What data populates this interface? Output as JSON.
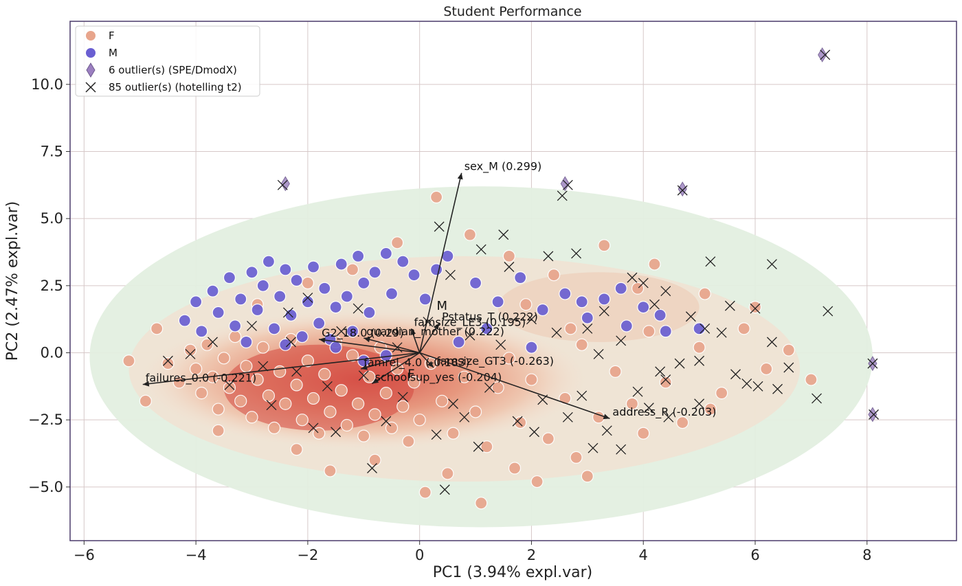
{
  "chart_data": {
    "type": "scatter",
    "title": "Student Performance",
    "xlabel": "PC1 (3.94% expl.var)",
    "ylabel": "PC2 (2.47% expl.var)",
    "xlim": [
      -6.25,
      9.6
    ],
    "ylim": [
      -7.0,
      12.35
    ],
    "xticks": [
      -6,
      -4,
      -2,
      0,
      2,
      4,
      6,
      8
    ],
    "yticks": [
      -5.0,
      -2.5,
      0.0,
      2.5,
      5.0,
      7.5,
      10.0
    ],
    "grid": true,
    "legend": {
      "position": "top-left",
      "entries": [
        {
          "label": "F",
          "marker": "circle",
          "color": "#e8a58c"
        },
        {
          "label": "M",
          "marker": "circle",
          "color": "#6a5fd2"
        },
        {
          "label": "6 outlier(s) (SPE/DmodX)",
          "marker": "diamond",
          "color": "#9b7fc0"
        },
        {
          "label": "85 outlier(s) (hotelling t2)",
          "marker": "x",
          "color": "#222222"
        }
      ]
    },
    "series": [
      {
        "name": "F",
        "color": "#e8a58c",
        "points": [
          [
            -4.7,
            0.9
          ],
          [
            -4.5,
            -0.4
          ],
          [
            -4.3,
            -1.1
          ],
          [
            -4.1,
            0.1
          ],
          [
            -4.0,
            -0.6
          ],
          [
            -3.9,
            -1.5
          ],
          [
            -3.8,
            0.3
          ],
          [
            -3.7,
            -0.9
          ],
          [
            -3.6,
            -2.1
          ],
          [
            -3.5,
            -0.2
          ],
          [
            -3.4,
            -1.3
          ],
          [
            -3.3,
            0.6
          ],
          [
            -3.2,
            -1.8
          ],
          [
            -3.1,
            -0.5
          ],
          [
            -3.0,
            -2.4
          ],
          [
            -2.9,
            -1.0
          ],
          [
            -2.8,
            0.2
          ],
          [
            -2.7,
            -1.6
          ],
          [
            -2.6,
            -2.8
          ],
          [
            -2.5,
            -0.7
          ],
          [
            -2.4,
            -1.9
          ],
          [
            -2.3,
            0.5
          ],
          [
            -2.2,
            -1.2
          ],
          [
            -2.1,
            -2.5
          ],
          [
            -2.0,
            -0.3
          ],
          [
            -1.9,
            -1.7
          ],
          [
            -1.8,
            -3.0
          ],
          [
            -1.7,
            -0.8
          ],
          [
            -1.6,
            -2.2
          ],
          [
            -1.5,
            0.4
          ],
          [
            -1.4,
            -1.4
          ],
          [
            -1.3,
            -2.7
          ],
          [
            -1.2,
            -0.1
          ],
          [
            -1.1,
            -1.9
          ],
          [
            -1.0,
            -3.1
          ],
          [
            -0.9,
            -0.9
          ],
          [
            -0.8,
            -2.3
          ],
          [
            -0.7,
            0.2
          ],
          [
            -0.6,
            -1.5
          ],
          [
            -0.5,
            -2.8
          ],
          [
            -0.4,
            -0.6
          ],
          [
            -0.3,
            -2.0
          ],
          [
            -0.2,
            -3.3
          ],
          [
            -0.1,
            -1.1
          ],
          [
            0.0,
            -2.5
          ],
          [
            0.2,
            -0.4
          ],
          [
            0.4,
            -1.8
          ],
          [
            0.6,
            -3.0
          ],
          [
            0.8,
            -0.9
          ],
          [
            1.0,
            -2.2
          ],
          [
            1.2,
            -3.5
          ],
          [
            1.4,
            -1.3
          ],
          [
            1.6,
            -0.2
          ],
          [
            1.8,
            -2.6
          ],
          [
            2.0,
            -1.0
          ],
          [
            2.3,
            -3.2
          ],
          [
            2.6,
            -1.7
          ],
          [
            2.9,
            0.3
          ],
          [
            3.2,
            -2.4
          ],
          [
            3.5,
            -0.7
          ],
          [
            3.8,
            -1.9
          ],
          [
            4.1,
            0.8
          ],
          [
            4.4,
            -1.1
          ],
          [
            4.7,
            -2.6
          ],
          [
            5.0,
            0.2
          ],
          [
            5.4,
            -1.5
          ],
          [
            5.8,
            0.9
          ],
          [
            6.2,
            -0.6
          ],
          [
            -2.9,
            1.8
          ],
          [
            -2.0,
            2.6
          ],
          [
            -1.2,
            3.1
          ],
          [
            -0.4,
            4.1
          ],
          [
            0.3,
            5.8
          ],
          [
            0.9,
            4.4
          ],
          [
            1.6,
            3.6
          ],
          [
            2.4,
            2.9
          ],
          [
            3.3,
            4.0
          ],
          [
            4.2,
            3.3
          ],
          [
            5.1,
            2.2
          ],
          [
            6.0,
            1.7
          ],
          [
            -3.6,
            -2.9
          ],
          [
            -2.2,
            -3.6
          ],
          [
            -0.8,
            -4.0
          ],
          [
            0.5,
            -4.5
          ],
          [
            1.7,
            -4.3
          ],
          [
            2.8,
            -3.9
          ],
          [
            4.0,
            -3.0
          ],
          [
            5.2,
            -2.1
          ],
          [
            -1.6,
            -4.4
          ],
          [
            0.1,
            -5.2
          ],
          [
            1.1,
            -5.6
          ],
          [
            2.1,
            -4.8
          ],
          [
            3.0,
            -4.6
          ],
          [
            -5.2,
            -0.3
          ],
          [
            -4.9,
            -1.8
          ],
          [
            6.6,
            0.1
          ],
          [
            7.0,
            -1.0
          ],
          [
            3.9,
            2.4
          ],
          [
            2.7,
            0.9
          ],
          [
            1.9,
            1.8
          ]
        ]
      },
      {
        "name": "M",
        "color": "#6a5fd2",
        "points": [
          [
            -4.2,
            1.2
          ],
          [
            -4.0,
            1.9
          ],
          [
            -3.9,
            0.8
          ],
          [
            -3.7,
            2.3
          ],
          [
            -3.6,
            1.5
          ],
          [
            -3.4,
            2.8
          ],
          [
            -3.3,
            1.0
          ],
          [
            -3.2,
            2.0
          ],
          [
            -3.0,
            3.0
          ],
          [
            -2.9,
            1.6
          ],
          [
            -2.8,
            2.5
          ],
          [
            -2.7,
            3.4
          ],
          [
            -2.6,
            0.9
          ],
          [
            -2.5,
            2.1
          ],
          [
            -2.4,
            3.1
          ],
          [
            -2.3,
            1.4
          ],
          [
            -2.2,
            2.7
          ],
          [
            -2.1,
            0.6
          ],
          [
            -2.0,
            1.9
          ],
          [
            -1.9,
            3.2
          ],
          [
            -1.8,
            1.1
          ],
          [
            -1.7,
            2.4
          ],
          [
            -1.6,
            0.5
          ],
          [
            -1.5,
            1.7
          ],
          [
            -1.4,
            3.3
          ],
          [
            -1.3,
            2.1
          ],
          [
            -1.2,
            0.8
          ],
          [
            -1.1,
            3.6
          ],
          [
            -1.0,
            2.6
          ],
          [
            -0.9,
            1.5
          ],
          [
            -0.8,
            3.0
          ],
          [
            -0.6,
            3.7
          ],
          [
            -0.5,
            2.2
          ],
          [
            -0.3,
            3.4
          ],
          [
            -0.1,
            2.9
          ],
          [
            0.1,
            2.0
          ],
          [
            0.3,
            3.1
          ],
          [
            0.5,
            3.6
          ],
          [
            1.0,
            2.6
          ],
          [
            1.4,
            1.9
          ],
          [
            1.8,
            2.8
          ],
          [
            2.2,
            1.6
          ],
          [
            2.6,
            2.2
          ],
          [
            3.0,
            1.3
          ],
          [
            3.3,
            2.0
          ],
          [
            3.7,
            1.0
          ],
          [
            4.0,
            1.7
          ],
          [
            4.4,
            0.8
          ],
          [
            -1.5,
            0.2
          ],
          [
            -1.0,
            -0.3
          ],
          [
            -0.6,
            -0.1
          ],
          [
            0.7,
            0.4
          ],
          [
            1.2,
            0.9
          ],
          [
            2.0,
            0.2
          ],
          [
            2.9,
            1.9
          ],
          [
            3.6,
            2.4
          ],
          [
            4.3,
            1.4
          ],
          [
            5.0,
            0.9
          ],
          [
            -2.4,
            0.3
          ],
          [
            -3.1,
            0.4
          ]
        ]
      }
    ],
    "outliers_spe": {
      "label": "6 outlier(s) (SPE/DmodX)",
      "points": [
        [
          -2.4,
          6.3
        ],
        [
          2.6,
          6.3
        ],
        [
          4.7,
          6.1
        ],
        [
          7.2,
          11.1
        ],
        [
          8.1,
          -0.4
        ],
        [
          8.1,
          -2.3
        ]
      ]
    },
    "outliers_hotelling": {
      "label": "85 outlier(s) (hotelling t2)",
      "points": [
        [
          -2.45,
          6.25
        ],
        [
          2.55,
          5.85
        ],
        [
          2.65,
          6.25
        ],
        [
          4.7,
          6.05
        ],
        [
          7.25,
          11.1
        ],
        [
          8.1,
          -0.4
        ],
        [
          8.12,
          -2.3
        ],
        [
          0.35,
          4.7
        ],
        [
          1.1,
          3.85
        ],
        [
          1.5,
          4.4
        ],
        [
          2.3,
          3.6
        ],
        [
          2.8,
          3.7
        ],
        [
          1.6,
          3.2
        ],
        [
          0.55,
          2.9
        ],
        [
          5.2,
          3.4
        ],
        [
          6.3,
          3.3
        ],
        [
          4.0,
          2.6
        ],
        [
          4.4,
          2.3
        ],
        [
          5.1,
          0.9
        ],
        [
          5.4,
          0.75
        ],
        [
          6.0,
          1.65
        ],
        [
          7.3,
          1.55
        ],
        [
          6.3,
          0.4
        ],
        [
          4.3,
          -0.7
        ],
        [
          4.4,
          -1.0
        ],
        [
          5.65,
          -0.8
        ],
        [
          5.85,
          -1.15
        ],
        [
          6.05,
          -1.25
        ],
        [
          6.4,
          -1.35
        ],
        [
          5.0,
          -1.9
        ],
        [
          3.2,
          -0.05
        ],
        [
          3.35,
          -2.9
        ],
        [
          3.1,
          -3.55
        ],
        [
          4.45,
          -2.4
        ],
        [
          2.65,
          -2.4
        ],
        [
          1.75,
          -2.55
        ],
        [
          0.8,
          -2.4
        ],
        [
          -0.85,
          -4.3
        ],
        [
          0.45,
          -5.1
        ],
        [
          -1.9,
          -2.8
        ],
        [
          -1.5,
          -2.95
        ],
        [
          -2.2,
          -0.7
        ],
        [
          -2.8,
          -0.5
        ],
        [
          -3.4,
          -1.2
        ],
        [
          -4.5,
          -0.3
        ],
        [
          -2.35,
          1.5
        ],
        [
          -2.3,
          0.4
        ],
        [
          -1.4,
          0.8
        ],
        [
          3.0,
          0.9
        ],
        [
          3.6,
          0.45
        ],
        [
          4.65,
          -0.4
        ],
        [
          5.0,
          -0.3
        ],
        [
          4.2,
          1.8
        ],
        [
          3.8,
          2.8
        ],
        [
          2.0,
          1.25
        ],
        [
          0.9,
          0.65
        ],
        [
          -0.4,
          0.2
        ],
        [
          -1.0,
          -0.85
        ],
        [
          0.6,
          -1.9
        ],
        [
          1.25,
          -1.3
        ],
        [
          2.2,
          -1.75
        ],
        [
          2.9,
          -1.6
        ],
        [
          3.9,
          -1.45
        ],
        [
          -0.3,
          -1.65
        ],
        [
          -3.0,
          1.0
        ],
        [
          -2.0,
          2.05
        ],
        [
          -1.1,
          1.65
        ],
        [
          0.15,
          1.15
        ],
        [
          1.45,
          0.3
        ],
        [
          2.45,
          0.75
        ],
        [
          3.3,
          1.55
        ],
        [
          4.85,
          1.35
        ],
        [
          5.55,
          1.75
        ],
        [
          6.6,
          -0.55
        ],
        [
          7.1,
          -1.7
        ],
        [
          -3.7,
          0.4
        ],
        [
          -4.1,
          -0.05
        ],
        [
          -0.6,
          -2.55
        ],
        [
          0.3,
          -3.05
        ],
        [
          1.05,
          -3.5
        ],
        [
          2.05,
          -2.95
        ],
        [
          3.6,
          -3.6
        ],
        [
          4.1,
          -2.05
        ],
        [
          -1.65,
          -1.25
        ],
        [
          -2.65,
          -1.95
        ]
      ]
    },
    "loadings": [
      {
        "label": "sex_M (0.299)",
        "x": 0.75,
        "y": 6.7
      },
      {
        "label": "Pstatus_T (0.222)",
        "x": 0.35,
        "y": 1.1
      },
      {
        "label": "famsize_LE3 (0.195)",
        "x": -0.15,
        "y": 0.9
      },
      {
        "label": "G2_18.0 (0.29)",
        "x": -1.8,
        "y": 0.5
      },
      {
        "label": "guardian_mother (0.222)",
        "x": -1.0,
        "y": 0.55
      },
      {
        "label": "famrel_4.0 (-0.183)",
        "x": -1.05,
        "y": -0.6
      },
      {
        "label": "failures_0.0 (-0.221)",
        "x": -4.95,
        "y": -1.18
      },
      {
        "label": "schoolsup_yes (-0.204)",
        "x": -0.85,
        "y": -1.15
      },
      {
        "label": "famsize_GT3 (-0.263)",
        "x": 0.25,
        "y": -0.55
      },
      {
        "label": "address_R (-0.203)",
        "x": 3.4,
        "y": -2.45
      }
    ],
    "annotations": [
      {
        "text": "M",
        "x": 0.4,
        "y": 1.6
      },
      {
        "text": "F",
        "x": -0.15,
        "y": -0.95
      }
    ]
  }
}
